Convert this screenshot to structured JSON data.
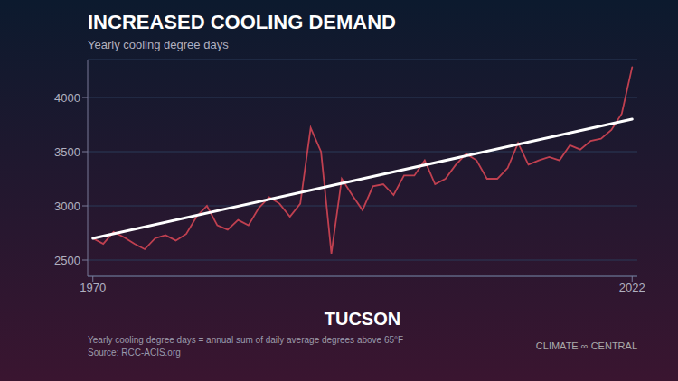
{
  "chart_data": {
    "type": "line",
    "title": "INCREASED COOLING DEMAND",
    "subtitle": "Yearly cooling degree days",
    "xlabel": "TUCSON",
    "footnotes": [
      "Yearly cooling degree days = annual sum of daily average degrees above 65°F",
      "Source: RCC-ACIS.org"
    ],
    "credit": "CLIMATE ∞ CENTRAL",
    "x": [
      1970,
      1971,
      1972,
      1973,
      1974,
      1975,
      1976,
      1977,
      1978,
      1979,
      1980,
      1981,
      1982,
      1983,
      1984,
      1985,
      1986,
      1987,
      1988,
      1989,
      1990,
      1991,
      1992,
      1993,
      1994,
      1995,
      1996,
      1997,
      1998,
      1999,
      2000,
      2001,
      2002,
      2003,
      2004,
      2005,
      2006,
      2007,
      2008,
      2009,
      2010,
      2011,
      2012,
      2013,
      2014,
      2015,
      2016,
      2017,
      2018,
      2019,
      2020,
      2021,
      2022
    ],
    "series": [
      {
        "color": "#c04050",
        "values": [
          2700,
          2650,
          2760,
          2710,
          2650,
          2600,
          2700,
          2730,
          2680,
          2740,
          2900,
          3000,
          2820,
          2780,
          2870,
          2820,
          2980,
          3080,
          3020,
          2900,
          3020,
          3720,
          3500,
          2560,
          3250,
          3100,
          2960,
          3180,
          3200,
          3100,
          3280,
          3280,
          3420,
          3200,
          3250,
          3380,
          3480,
          3420,
          3250,
          3250,
          3350,
          3580,
          3380,
          3420,
          3450,
          3420,
          3560,
          3520,
          3600,
          3620,
          3700,
          3850,
          4280
        ]
      },
      {
        "color": "#ffffff",
        "x": [
          1970,
          2022
        ],
        "values": [
          2700,
          3800
        ]
      }
    ],
    "xlim": [
      1969.5,
      2022.5
    ],
    "xticks": [
      1970,
      2022
    ],
    "ylim": [
      2350,
      4350
    ],
    "yticks": [
      2500,
      3000,
      3500,
      4000
    ],
    "grid": true
  }
}
